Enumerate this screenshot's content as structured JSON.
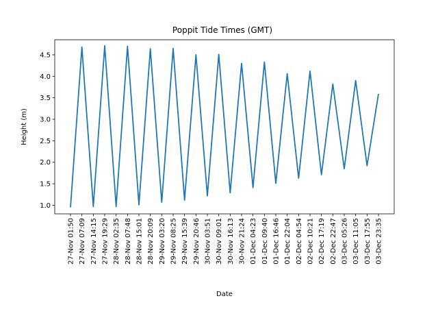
{
  "chart_data": {
    "type": "line",
    "title": "Poppit Tide Times (GMT)",
    "xlabel": "Date",
    "ylabel": "Height (m)",
    "ylim": [
      0.8,
      4.85
    ],
    "yticks": [
      1.0,
      1.5,
      2.0,
      2.5,
      3.0,
      3.5,
      4.0,
      4.5
    ],
    "ytick_labels": [
      "1.0",
      "1.5",
      "2.0",
      "2.5",
      "3.0",
      "3.5",
      "4.0",
      "4.5"
    ],
    "grid": false,
    "series_color": "#1f77b4",
    "categories": [
      "27-Nov 01:50",
      "27-Nov 07:09",
      "27-Nov 14:15",
      "27-Nov 19:29",
      "28-Nov 02:35",
      "28-Nov 07:48",
      "28-Nov 15:01",
      "28-Nov 20:09",
      "29-Nov 03:20",
      "29-Nov 08:25",
      "29-Nov 15:39",
      "29-Nov 20:46",
      "30-Nov 03:51",
      "30-Nov 09:01",
      "30-Nov 16:13",
      "30-Nov 21:24",
      "01-Dec 04:23",
      "01-Dec 09:40",
      "01-Dec 16:46",
      "01-Dec 22:04",
      "02-Dec 04:54",
      "02-Dec 10:21",
      "02-Dec 17:19",
      "02-Dec 22:47",
      "03-Dec 05:26",
      "03-Dec 11:05",
      "03-Dec 17:55",
      "03-Dec 23:35"
    ],
    "series": [
      {
        "values": [
          0.95,
          4.68,
          0.97,
          4.71,
          0.97,
          4.7,
          1.01,
          4.64,
          1.07,
          4.65,
          1.12,
          4.5,
          1.22,
          4.51,
          1.29,
          4.3,
          1.41,
          4.33,
          1.51,
          4.06,
          1.63,
          4.12,
          1.71,
          3.82,
          1.85,
          3.9,
          1.92,
          3.59
        ]
      }
    ]
  }
}
